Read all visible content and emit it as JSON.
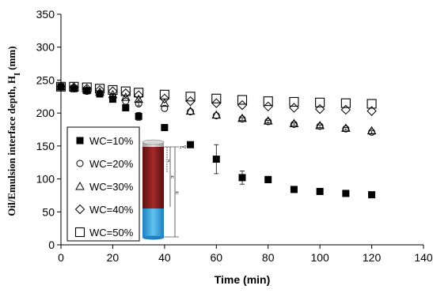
{
  "chart_data": {
    "type": "scatter",
    "title": "",
    "xlabel": "Time (min)",
    "ylabel": "Oil/Emulsion  interface depth, H",
    "ylabel_sub": "I",
    "ylabel_unit": " (mm)",
    "xlim": [
      0,
      140
    ],
    "ylim": [
      0,
      350
    ],
    "x_ticks": [
      0,
      20,
      40,
      60,
      80,
      100,
      120,
      140
    ],
    "y_ticks": [
      0,
      50,
      100,
      150,
      200,
      250,
      300,
      350
    ],
    "grid": false,
    "legend_position": "lower-left",
    "series": [
      {
        "name": "WC=10%",
        "marker": "filled-square",
        "x": [
          0,
          5,
          10,
          15,
          20,
          25,
          30,
          40,
          50,
          60,
          70,
          80,
          90,
          100,
          110,
          120
        ],
        "y": [
          240,
          237,
          234,
          229,
          221,
          208,
          195,
          178,
          152,
          130,
          102,
          99,
          84,
          81,
          78,
          76
        ],
        "error": [
          0,
          0,
          0,
          0,
          0,
          0,
          6,
          0,
          0,
          22,
          10,
          5,
          0,
          0,
          0,
          0
        ]
      },
      {
        "name": "WC=20%",
        "marker": "open-circle",
        "x": [
          0,
          5,
          10,
          15,
          20,
          25,
          30,
          40,
          50,
          60,
          70,
          80,
          90,
          100,
          110,
          120
        ],
        "y": [
          240,
          237,
          233,
          230,
          225,
          218,
          214,
          207,
          202,
          196,
          191,
          187,
          183,
          180,
          176,
          171
        ],
        "error": [
          0,
          0,
          0,
          0,
          0,
          0,
          3,
          0,
          0,
          0,
          2,
          2,
          2,
          2,
          2,
          2
        ]
      },
      {
        "name": "WC=30%",
        "marker": "open-triangle",
        "x": [
          0,
          5,
          10,
          15,
          20,
          25,
          30,
          40,
          50,
          60,
          70,
          80,
          90,
          100,
          110,
          120
        ],
        "y": [
          240,
          238,
          235,
          232,
          228,
          224,
          221,
          215,
          203,
          197,
          192,
          188,
          184,
          181,
          177,
          173
        ],
        "error": [
          0,
          0,
          0,
          0,
          0,
          0,
          0,
          0,
          0,
          0,
          0,
          0,
          0,
          0,
          0,
          0
        ]
      },
      {
        "name": "WC=40%",
        "marker": "open-diamond",
        "x": [
          0,
          5,
          10,
          15,
          20,
          25,
          30,
          40,
          50,
          60,
          70,
          80,
          90,
          100,
          110,
          120
        ],
        "y": [
          240,
          239,
          237,
          235,
          233,
          230,
          227,
          222,
          218,
          215,
          212,
          210,
          208,
          206,
          205,
          203
        ],
        "error": [
          0,
          0,
          0,
          0,
          0,
          0,
          0,
          0,
          0,
          0,
          0,
          0,
          0,
          0,
          0,
          0
        ]
      },
      {
        "name": "WC=50%",
        "marker": "open-square",
        "x": [
          0,
          5,
          10,
          15,
          20,
          25,
          30,
          40,
          50,
          60,
          70,
          80,
          90,
          100,
          110,
          120
        ],
        "y": [
          240,
          240,
          239,
          237,
          235,
          233,
          231,
          228,
          225,
          222,
          220,
          218,
          217,
          216,
          215,
          214
        ],
        "error": [
          0,
          0,
          0,
          0,
          0,
          0,
          0,
          0,
          0,
          0,
          0,
          0,
          0,
          0,
          0,
          0
        ]
      }
    ],
    "inset": {
      "interface_label": "z=0",
      "dimension_labels": [
        "z",
        "H",
        "H"
      ]
    }
  }
}
